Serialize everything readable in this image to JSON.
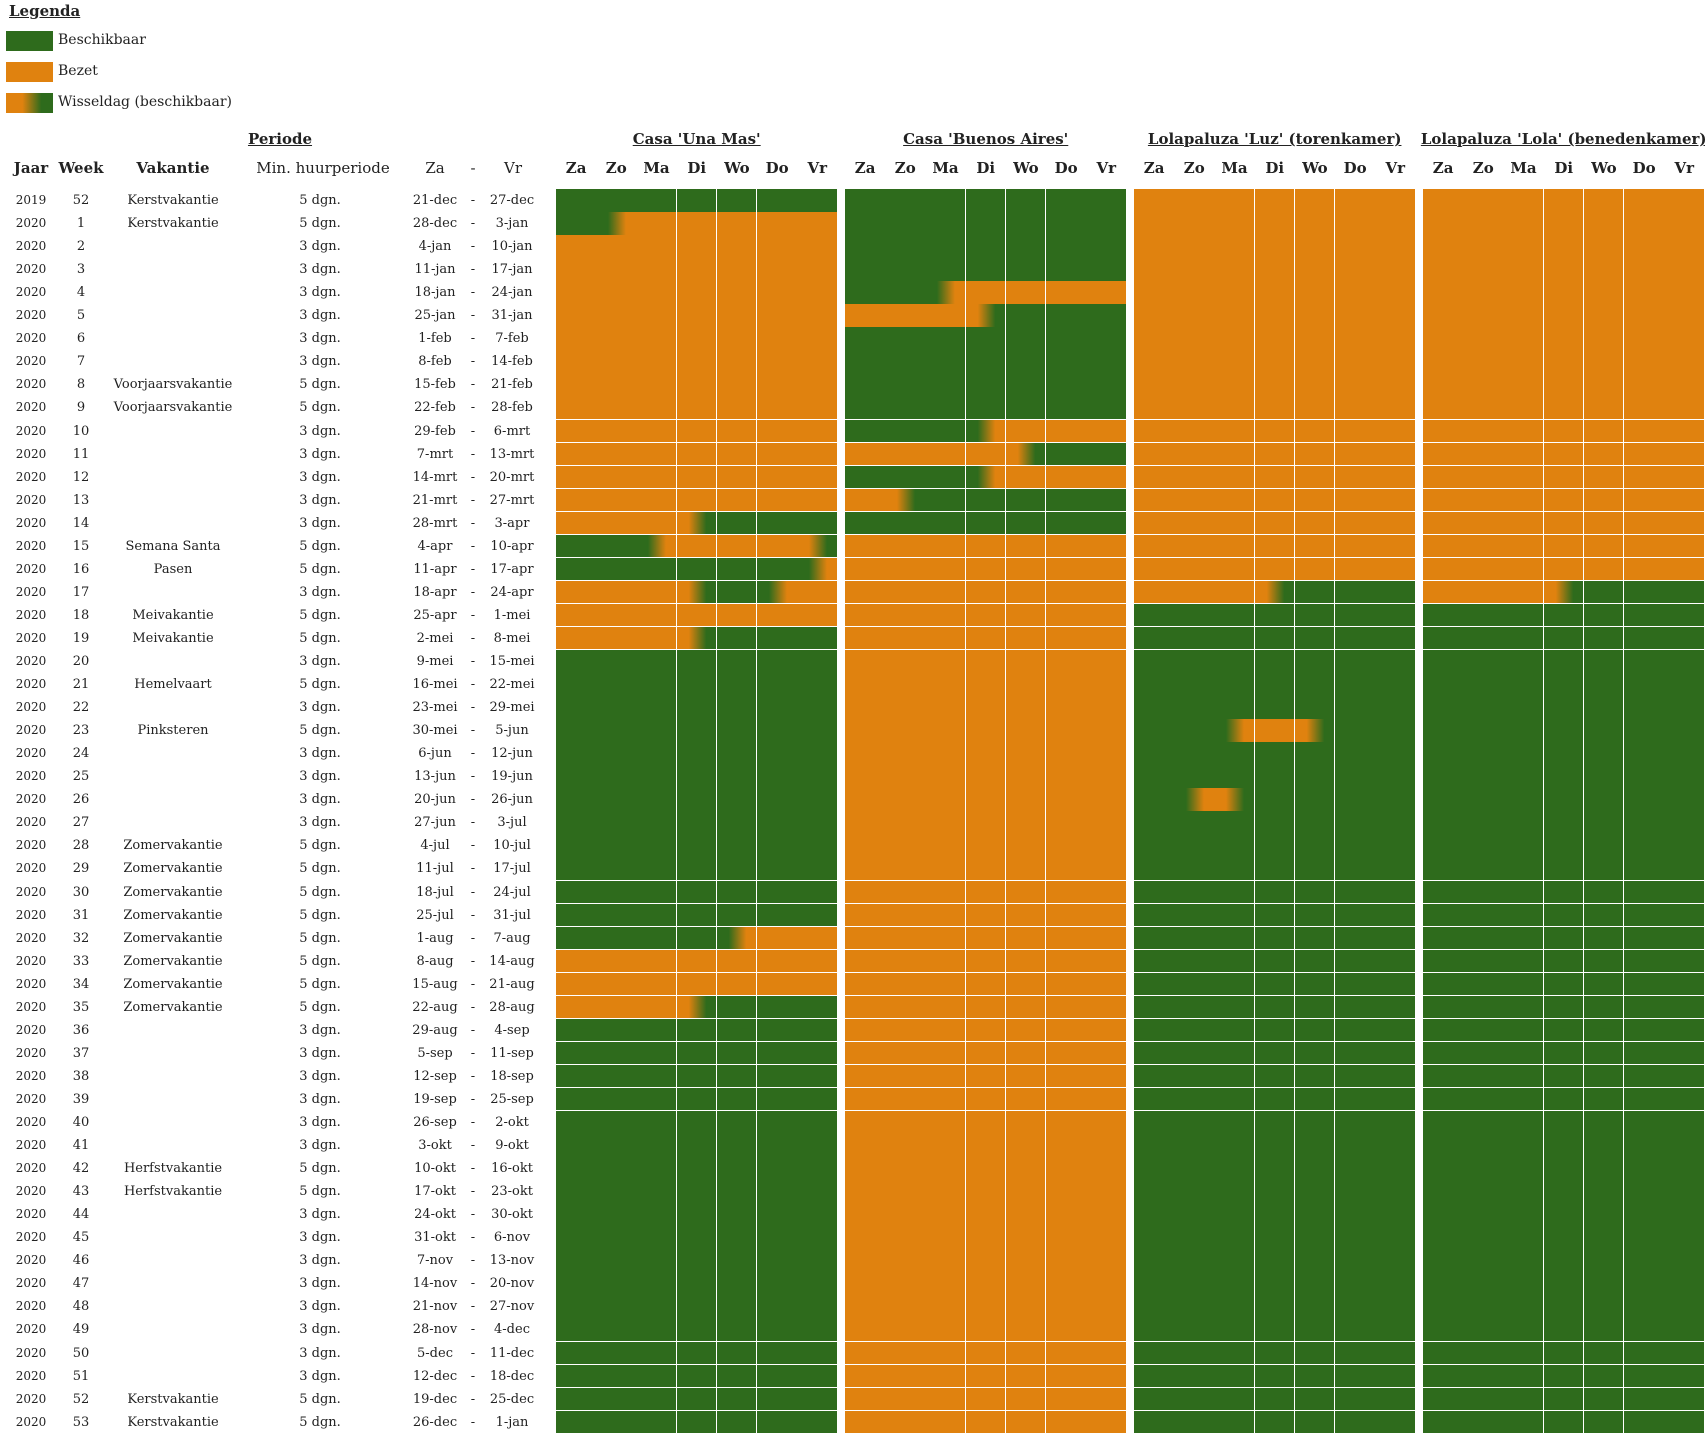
{
  "legend": {
    "title": "Legenda",
    "items": [
      {
        "key": "G",
        "label": "Beschikbaar",
        "color": "#2e6b1c"
      },
      {
        "key": "O",
        "label": "Bezet",
        "color": "#e0820f"
      },
      {
        "key": "X",
        "label": "Wisseldag (beschikbaar)"
      }
    ]
  },
  "headers": {
    "periode": "Periode",
    "jaar": "Jaar",
    "week": "Week",
    "vakantie": "Vakantie",
    "min": "Min. huurperiode",
    "za": "Za",
    "dash": "-",
    "vr": "Vr"
  },
  "days": [
    "Za",
    "Zo",
    "Ma",
    "Di",
    "Wo",
    "Do",
    "Vr"
  ],
  "properties": [
    "Casa 'Una Mas'",
    "Casa 'Buenos Aires'",
    "Lolapaluza 'Luz' (torenkamer)",
    "Lolapaluza 'Lola' (benedenkamer)"
  ],
  "rows": [
    {
      "jaar": "2019",
      "week": "52",
      "vak": "Kerstvakantie",
      "min": "5 dgn.",
      "za": "21-dec",
      "vr": "27-dec",
      "c": [
        "GGGGGGG",
        "GGGGGGG",
        "OOOOOOO",
        "OOOOOOO"
      ]
    },
    {
      "jaar": "2020",
      "week": "1",
      "vak": "Kerstvakantie",
      "min": "5 dgn.",
      "za": "28-dec",
      "vr": "3-jan",
      "c": [
        "GXOOOOO",
        "GGGGGGG",
        "OOOOOOO",
        "OOOOOOO"
      ]
    },
    {
      "jaar": "2020",
      "week": "2",
      "vak": "",
      "min": "3 dgn.",
      "za": "4-jan",
      "vr": "10-jan",
      "c": [
        "OOOOOOO",
        "GGGGGGG",
        "OOOOOOO",
        "OOOOOOO"
      ]
    },
    {
      "jaar": "2020",
      "week": "3",
      "vak": "",
      "min": "3 dgn.",
      "za": "11-jan",
      "vr": "17-jan",
      "c": [
        "OOOOOOO",
        "GGGGGGG",
        "OOOOOOO",
        "OOOOOOO"
      ]
    },
    {
      "jaar": "2020",
      "week": "4",
      "vak": "",
      "min": "3 dgn.",
      "za": "18-jan",
      "vr": "24-jan",
      "c": [
        "OOOOOOO",
        "GGXOOOO",
        "OOOOOOO",
        "OOOOOOO"
      ]
    },
    {
      "jaar": "2020",
      "week": "5",
      "vak": "",
      "min": "3 dgn.",
      "za": "25-jan",
      "vr": "31-jan",
      "c": [
        "OOOOOOO",
        "OOOYGGG",
        "OOOOOOO",
        "OOOOOOO"
      ]
    },
    {
      "jaar": "2020",
      "week": "6",
      "vak": "",
      "min": "3 dgn.",
      "za": "1-feb",
      "vr": "7-feb",
      "c": [
        "OOOOOOO",
        "GGGGGGG",
        "OOOOOOO",
        "OOOOOOO"
      ]
    },
    {
      "jaar": "2020",
      "week": "7",
      "vak": "",
      "min": "3 dgn.",
      "za": "8-feb",
      "vr": "14-feb",
      "c": [
        "OOOOOOO",
        "GGGGGGG",
        "OOOOOOO",
        "OOOOOOO"
      ]
    },
    {
      "jaar": "2020",
      "week": "8",
      "vak": "Voorjaarsvakantie",
      "min": "5 dgn.",
      "za": "15-feb",
      "vr": "21-feb",
      "c": [
        "OOOOOOO",
        "GGGGGGG",
        "OOOOOOO",
        "OOOOOOO"
      ]
    },
    {
      "jaar": "2020",
      "week": "9",
      "vak": "Voorjaarsvakantie",
      "min": "5 dgn.",
      "za": "22-feb",
      "vr": "28-feb",
      "c": [
        "OOOOOOO",
        "GGGGGGG",
        "OOOOOOO",
        "OOOOOOO"
      ]
    },
    {
      "jaar": "2020",
      "week": "10",
      "vak": "",
      "min": "3 dgn.",
      "za": "29-feb",
      "vr": "6-mrt",
      "c": [
        "OOOOOOO",
        "GGGXOOO",
        "OOOOOOO",
        "OOOOOOO"
      ]
    },
    {
      "jaar": "2020",
      "week": "11",
      "vak": "",
      "min": "3 dgn.",
      "za": "7-mrt",
      "vr": "13-mrt",
      "c": [
        "OOOOOOO",
        "OOOOYGG",
        "OOOOOOO",
        "OOOOOOO"
      ]
    },
    {
      "jaar": "2020",
      "week": "12",
      "vak": "",
      "min": "3 dgn.",
      "za": "14-mrt",
      "vr": "20-mrt",
      "c": [
        "OOOOOOO",
        "GGGXOOO",
        "OOOOOOO",
        "OOOOOOO"
      ]
    },
    {
      "jaar": "2020",
      "week": "13",
      "vak": "",
      "min": "3 dgn.",
      "za": "21-mrt",
      "vr": "27-mrt",
      "c": [
        "OOOOOOO",
        "OYGGGGG",
        "OOOOOOO",
        "OOOOOOO"
      ]
    },
    {
      "jaar": "2020",
      "week": "14",
      "vak": "",
      "min": "3 dgn.",
      "za": "28-mrt",
      "vr": "3-apr",
      "c": [
        "OOOYGGG",
        "GGGGGGG",
        "OOOOOOO",
        "OOOOOOO"
      ]
    },
    {
      "jaar": "2020",
      "week": "15",
      "vak": "Semana Santa",
      "min": "5 dgn.",
      "za": "4-apr",
      "vr": "10-apr",
      "c": [
        "GGXOOOY",
        "OOOOOOO",
        "OOOOOOO",
        "OOOOOOO"
      ]
    },
    {
      "jaar": "2020",
      "week": "16",
      "vak": "Pasen",
      "min": "5 dgn.",
      "za": "11-apr",
      "vr": "17-apr",
      "c": [
        "GGGGGGX",
        "OOOOOOO",
        "OOOOOOO",
        "OOOOOOO"
      ]
    },
    {
      "jaar": "2020",
      "week": "17",
      "vak": "",
      "min": "3 dgn.",
      "za": "18-apr",
      "vr": "24-apr",
      "c": [
        "OOOYGXO",
        "OOOOOOO",
        "OOOYGGG",
        "OOOYGGG"
      ]
    },
    {
      "jaar": "2020",
      "week": "18",
      "vak": "Meivakantie",
      "min": "5 dgn.",
      "za": "25-apr",
      "vr": "1-mei",
      "c": [
        "OOOOOOO",
        "OOOOOOO",
        "GGGGGGG",
        "GGGGGGG"
      ]
    },
    {
      "jaar": "2020",
      "week": "19",
      "vak": "Meivakantie",
      "min": "5 dgn.",
      "za": "2-mei",
      "vr": "8-mei",
      "c": [
        "OOOYGGG",
        "OOOOOOO",
        "GGGGGGG",
        "GGGGGGG"
      ]
    },
    {
      "jaar": "2020",
      "week": "20",
      "vak": "",
      "min": "3 dgn.",
      "za": "9-mei",
      "vr": "15-mei",
      "c": [
        "GGGGGGG",
        "OOOOOOO",
        "GGGGGGG",
        "GGGGGGG"
      ]
    },
    {
      "jaar": "2020",
      "week": "21",
      "vak": "Hemelvaart",
      "min": "5 dgn.",
      "za": "16-mei",
      "vr": "22-mei",
      "c": [
        "GGGGGGG",
        "OOOOOOO",
        "GGGGGGG",
        "GGGGGGG"
      ]
    },
    {
      "jaar": "2020",
      "week": "22",
      "vak": "",
      "min": "3 dgn.",
      "za": "23-mei",
      "vr": "29-mei",
      "c": [
        "GGGGGGG",
        "OOOOOOO",
        "GGGGGGG",
        "GGGGGGG"
      ]
    },
    {
      "jaar": "2020",
      "week": "23",
      "vak": "Pinksteren",
      "min": "5 dgn.",
      "za": "30-mei",
      "vr": "5-jun",
      "c": [
        "GGGGGGG",
        "OOOOOOO",
        "GGXOYGG",
        "GGGGGGG"
      ]
    },
    {
      "jaar": "2020",
      "week": "24",
      "vak": "",
      "min": "3 dgn.",
      "za": "6-jun",
      "vr": "12-jun",
      "c": [
        "GGGGGGG",
        "OOOOOOO",
        "GGGGGGG",
        "GGGGGGG"
      ]
    },
    {
      "jaar": "2020",
      "week": "25",
      "vak": "",
      "min": "3 dgn.",
      "za": "13-jun",
      "vr": "19-jun",
      "c": [
        "GGGGGGG",
        "OOOOOOO",
        "GGGGGGG",
        "GGGGGGG"
      ]
    },
    {
      "jaar": "2020",
      "week": "26",
      "vak": "",
      "min": "3 dgn.",
      "za": "20-jun",
      "vr": "26-jun",
      "c": [
        "GGGGGGG",
        "OOOOOOO",
        "GXYGGGG",
        "GGGGGGG"
      ]
    },
    {
      "jaar": "2020",
      "week": "27",
      "vak": "",
      "min": "3 dgn.",
      "za": "27-jun",
      "vr": "3-jul",
      "c": [
        "GGGGGGG",
        "OOOOOOO",
        "GGGGGGG",
        "GGGGGGG"
      ]
    },
    {
      "jaar": "2020",
      "week": "28",
      "vak": "Zomervakantie",
      "min": "5 dgn.",
      "za": "4-jul",
      "vr": "10-jul",
      "c": [
        "GGGGGGG",
        "OOOOOOO",
        "GGGGGGG",
        "GGGGGGG"
      ]
    },
    {
      "jaar": "2020",
      "week": "29",
      "vak": "Zomervakantie",
      "min": "5 dgn.",
      "za": "11-jul",
      "vr": "17-jul",
      "c": [
        "GGGGGGG",
        "OOOOOOO",
        "GGGGGGG",
        "GGGGGGG"
      ]
    },
    {
      "jaar": "2020",
      "week": "30",
      "vak": "Zomervakantie",
      "min": "5 dgn.",
      "za": "18-jul",
      "vr": "24-jul",
      "c": [
        "GGGGGGG",
        "OOOOOOO",
        "GGGGGGG",
        "GGGGGGG"
      ]
    },
    {
      "jaar": "2020",
      "week": "31",
      "vak": "Zomervakantie",
      "min": "5 dgn.",
      "za": "25-jul",
      "vr": "31-jul",
      "c": [
        "GGGGGGG",
        "OOOOOOO",
        "GGGGGGG",
        "GGGGGGG"
      ]
    },
    {
      "jaar": "2020",
      "week": "32",
      "vak": "Zomervakantie",
      "min": "5 dgn.",
      "za": "1-aug",
      "vr": "7-aug",
      "c": [
        "GGGGXOO",
        "OOOOOOO",
        "GGGGGGG",
        "GGGGGGG"
      ]
    },
    {
      "jaar": "2020",
      "week": "33",
      "vak": "Zomervakantie",
      "min": "5 dgn.",
      "za": "8-aug",
      "vr": "14-aug",
      "c": [
        "OOOOOOO",
        "OOOOOOO",
        "GGGGGGG",
        "GGGGGGG"
      ]
    },
    {
      "jaar": "2020",
      "week": "34",
      "vak": "Zomervakantie",
      "min": "5 dgn.",
      "za": "15-aug",
      "vr": "21-aug",
      "c": [
        "OOOOOOO",
        "OOOOOOO",
        "GGGGGGG",
        "GGGGGGG"
      ]
    },
    {
      "jaar": "2020",
      "week": "35",
      "vak": "Zomervakantie",
      "min": "5 dgn.",
      "za": "22-aug",
      "vr": "28-aug",
      "c": [
        "OOOYGGG",
        "OOOOOOO",
        "GGGGGGG",
        "GGGGGGG"
      ]
    },
    {
      "jaar": "2020",
      "week": "36",
      "vak": "",
      "min": "3 dgn.",
      "za": "29-aug",
      "vr": "4-sep",
      "c": [
        "GGGGGGG",
        "OOOOOOO",
        "GGGGGGG",
        "GGGGGGG"
      ]
    },
    {
      "jaar": "2020",
      "week": "37",
      "vak": "",
      "min": "3 dgn.",
      "za": "5-sep",
      "vr": "11-sep",
      "c": [
        "GGGGGGG",
        "OOOOOOO",
        "GGGGGGG",
        "GGGGGGG"
      ]
    },
    {
      "jaar": "2020",
      "week": "38",
      "vak": "",
      "min": "3 dgn.",
      "za": "12-sep",
      "vr": "18-sep",
      "c": [
        "GGGGGGG",
        "OOOOOOO",
        "GGGGGGG",
        "GGGGGGG"
      ]
    },
    {
      "jaar": "2020",
      "week": "39",
      "vak": "",
      "min": "3 dgn.",
      "za": "19-sep",
      "vr": "25-sep",
      "c": [
        "GGGGGGG",
        "OOOOOOO",
        "GGGGGGG",
        "GGGGGGG"
      ]
    },
    {
      "jaar": "2020",
      "week": "40",
      "vak": "",
      "min": "3 dgn.",
      "za": "26-sep",
      "vr": "2-okt",
      "c": [
        "GGGGGGG",
        "OOOOOOO",
        "GGGGGGG",
        "GGGGGGG"
      ]
    },
    {
      "jaar": "2020",
      "week": "41",
      "vak": "",
      "min": "3 dgn.",
      "za": "3-okt",
      "vr": "9-okt",
      "c": [
        "GGGGGGG",
        "OOOOOOO",
        "GGGGGGG",
        "GGGGGGG"
      ]
    },
    {
      "jaar": "2020",
      "week": "42",
      "vak": "Herfstvakantie",
      "min": "5 dgn.",
      "za": "10-okt",
      "vr": "16-okt",
      "c": [
        "GGGGGGG",
        "OOOOOOO",
        "GGGGGGG",
        "GGGGGGG"
      ]
    },
    {
      "jaar": "2020",
      "week": "43",
      "vak": "Herfstvakantie",
      "min": "5 dgn.",
      "za": "17-okt",
      "vr": "23-okt",
      "c": [
        "GGGGGGG",
        "OOOOOOO",
        "GGGGGGG",
        "GGGGGGG"
      ]
    },
    {
      "jaar": "2020",
      "week": "44",
      "vak": "",
      "min": "3 dgn.",
      "za": "24-okt",
      "vr": "30-okt",
      "c": [
        "GGGGGGG",
        "OOOOOOO",
        "GGGGGGG",
        "GGGGGGG"
      ]
    },
    {
      "jaar": "2020",
      "week": "45",
      "vak": "",
      "min": "3 dgn.",
      "za": "31-okt",
      "vr": "6-nov",
      "c": [
        "GGGGGGG",
        "OOOOOOO",
        "GGGGGGG",
        "GGGGGGG"
      ]
    },
    {
      "jaar": "2020",
      "week": "46",
      "vak": "",
      "min": "3 dgn.",
      "za": "7-nov",
      "vr": "13-nov",
      "c": [
        "GGGGGGG",
        "OOOOOOO",
        "GGGGGGG",
        "GGGGGGG"
      ]
    },
    {
      "jaar": "2020",
      "week": "47",
      "vak": "",
      "min": "3 dgn.",
      "za": "14-nov",
      "vr": "20-nov",
      "c": [
        "GGGGGGG",
        "OOOOOOO",
        "GGGGGGG",
        "GGGGGGG"
      ]
    },
    {
      "jaar": "2020",
      "week": "48",
      "vak": "",
      "min": "3 dgn.",
      "za": "21-nov",
      "vr": "27-nov",
      "c": [
        "GGGGGGG",
        "OOOOOOO",
        "GGGGGGG",
        "GGGGGGG"
      ]
    },
    {
      "jaar": "2020",
      "week": "49",
      "vak": "",
      "min": "3 dgn.",
      "za": "28-nov",
      "vr": "4-dec",
      "c": [
        "GGGGGGG",
        "OOOOOOO",
        "GGGGGGG",
        "GGGGGGG"
      ]
    },
    {
      "jaar": "2020",
      "week": "50",
      "vak": "",
      "min": "3 dgn.",
      "za": "5-dec",
      "vr": "11-dec",
      "c": [
        "GGGGGGG",
        "OOOOOOO",
        "GGGGGGG",
        "GGGGGGG"
      ]
    },
    {
      "jaar": "2020",
      "week": "51",
      "vak": "",
      "min": "3 dgn.",
      "za": "12-dec",
      "vr": "18-dec",
      "c": [
        "GGGGGGG",
        "OOOOOOO",
        "GGGGGGG",
        "GGGGGGG"
      ]
    },
    {
      "jaar": "2020",
      "week": "52",
      "vak": "Kerstvakantie",
      "min": "5 dgn.",
      "za": "19-dec",
      "vr": "25-dec",
      "c": [
        "GGGGGGG",
        "OOOOOOO",
        "GGGGGGG",
        "GGGGGGG"
      ]
    },
    {
      "jaar": "2020",
      "week": "53",
      "vak": "Kerstvakantie",
      "min": "5 dgn.",
      "za": "26-dec",
      "vr": "1-jan",
      "c": [
        "GGGGGGG",
        "OOOOOOO",
        "GGGGGGG",
        "GGGGGGG"
      ]
    }
  ]
}
